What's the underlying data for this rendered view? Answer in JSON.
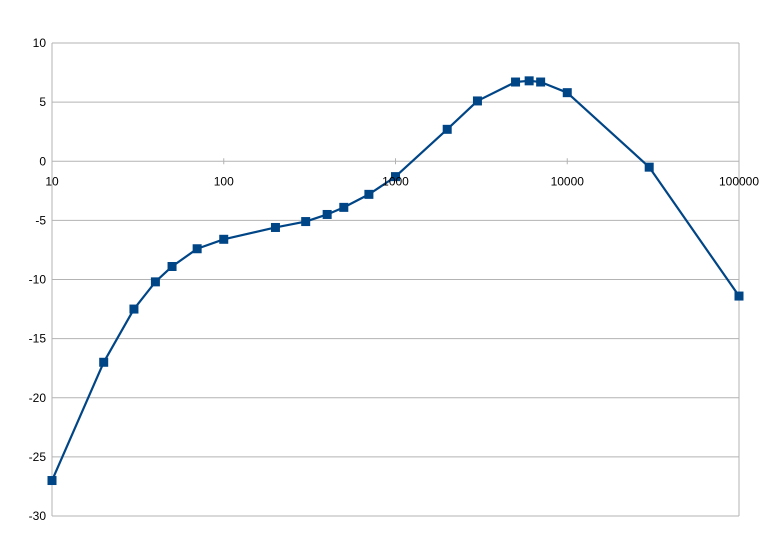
{
  "chart_data": {
    "type": "line",
    "title": "",
    "xlabel": "",
    "ylabel": "",
    "x_scale": "log",
    "xlim": [
      10,
      100000
    ],
    "ylim": [
      -30,
      10
    ],
    "x_ticks": [
      10,
      100,
      1000,
      10000,
      100000
    ],
    "x_tick_labels": [
      "10",
      "100",
      "1000",
      "10000",
      "100000"
    ],
    "y_ticks": [
      10,
      5,
      0,
      -5,
      -10,
      -15,
      -20,
      -25,
      -30
    ],
    "y_tick_labels": [
      "10",
      "5",
      "0",
      "-5",
      "-10",
      "-15",
      "-20",
      "-25",
      "-30"
    ],
    "grid": "horizontal",
    "legend": "none",
    "series": [
      {
        "color": "#004586",
        "marker": "square",
        "x": [
          10,
          20,
          30,
          40,
          50,
          70,
          100,
          200,
          300,
          400,
          500,
          700,
          1000,
          2000,
          3000,
          5000,
          6000,
          7000,
          10000,
          30000,
          100000
        ],
        "y": [
          -27,
          -17,
          -12.5,
          -10.2,
          -8.9,
          -7.4,
          -6.6,
          -5.6,
          -5.1,
          -4.5,
          -3.9,
          -2.8,
          -1.3,
          2.7,
          5.1,
          6.7,
          6.8,
          6.7,
          5.8,
          -0.5,
          -11.4
        ]
      }
    ]
  }
}
